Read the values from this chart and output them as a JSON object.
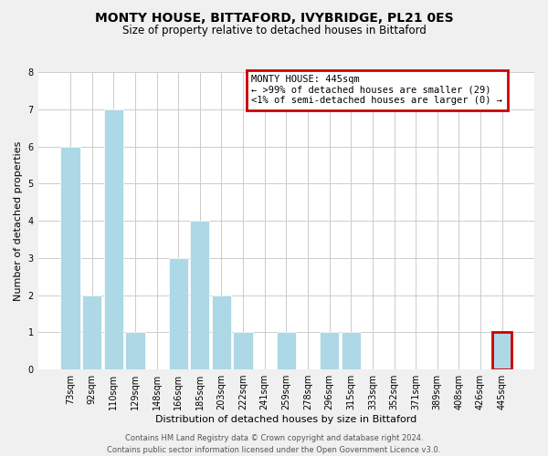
{
  "title": "MONTY HOUSE, BITTAFORD, IVYBRIDGE, PL21 0ES",
  "subtitle": "Size of property relative to detached houses in Bittaford",
  "xlabel": "Distribution of detached houses by size in Bittaford",
  "ylabel": "Number of detached properties",
  "bar_labels": [
    "73sqm",
    "92sqm",
    "110sqm",
    "129sqm",
    "148sqm",
    "166sqm",
    "185sqm",
    "203sqm",
    "222sqm",
    "241sqm",
    "259sqm",
    "278sqm",
    "296sqm",
    "315sqm",
    "333sqm",
    "352sqm",
    "371sqm",
    "389sqm",
    "408sqm",
    "426sqm",
    "445sqm"
  ],
  "bar_values": [
    6,
    2,
    7,
    1,
    0,
    3,
    4,
    2,
    1,
    0,
    1,
    0,
    1,
    1,
    0,
    0,
    0,
    0,
    0,
    0,
    1
  ],
  "bar_color": "#ADD8E6",
  "highlight_index": 20,
  "highlight_box_color": "#cc0000",
  "ylim": [
    0,
    8
  ],
  "yticks": [
    0,
    1,
    2,
    3,
    4,
    5,
    6,
    7,
    8
  ],
  "annotation_title": "MONTY HOUSE: 445sqm",
  "annotation_line1": "← >99% of detached houses are smaller (29)",
  "annotation_line2": "<1% of semi-detached houses are larger (0) →",
  "footer_line1": "Contains HM Land Registry data © Crown copyright and database right 2024.",
  "footer_line2": "Contains public sector information licensed under the Open Government Licence v3.0.",
  "background_color": "#f0f0f0",
  "plot_background": "#ffffff",
  "grid_color": "#cccccc",
  "title_fontsize": 10,
  "subtitle_fontsize": 8.5,
  "axis_label_fontsize": 8,
  "tick_fontsize": 7,
  "footer_fontsize": 6,
  "annotation_fontsize": 7.5
}
